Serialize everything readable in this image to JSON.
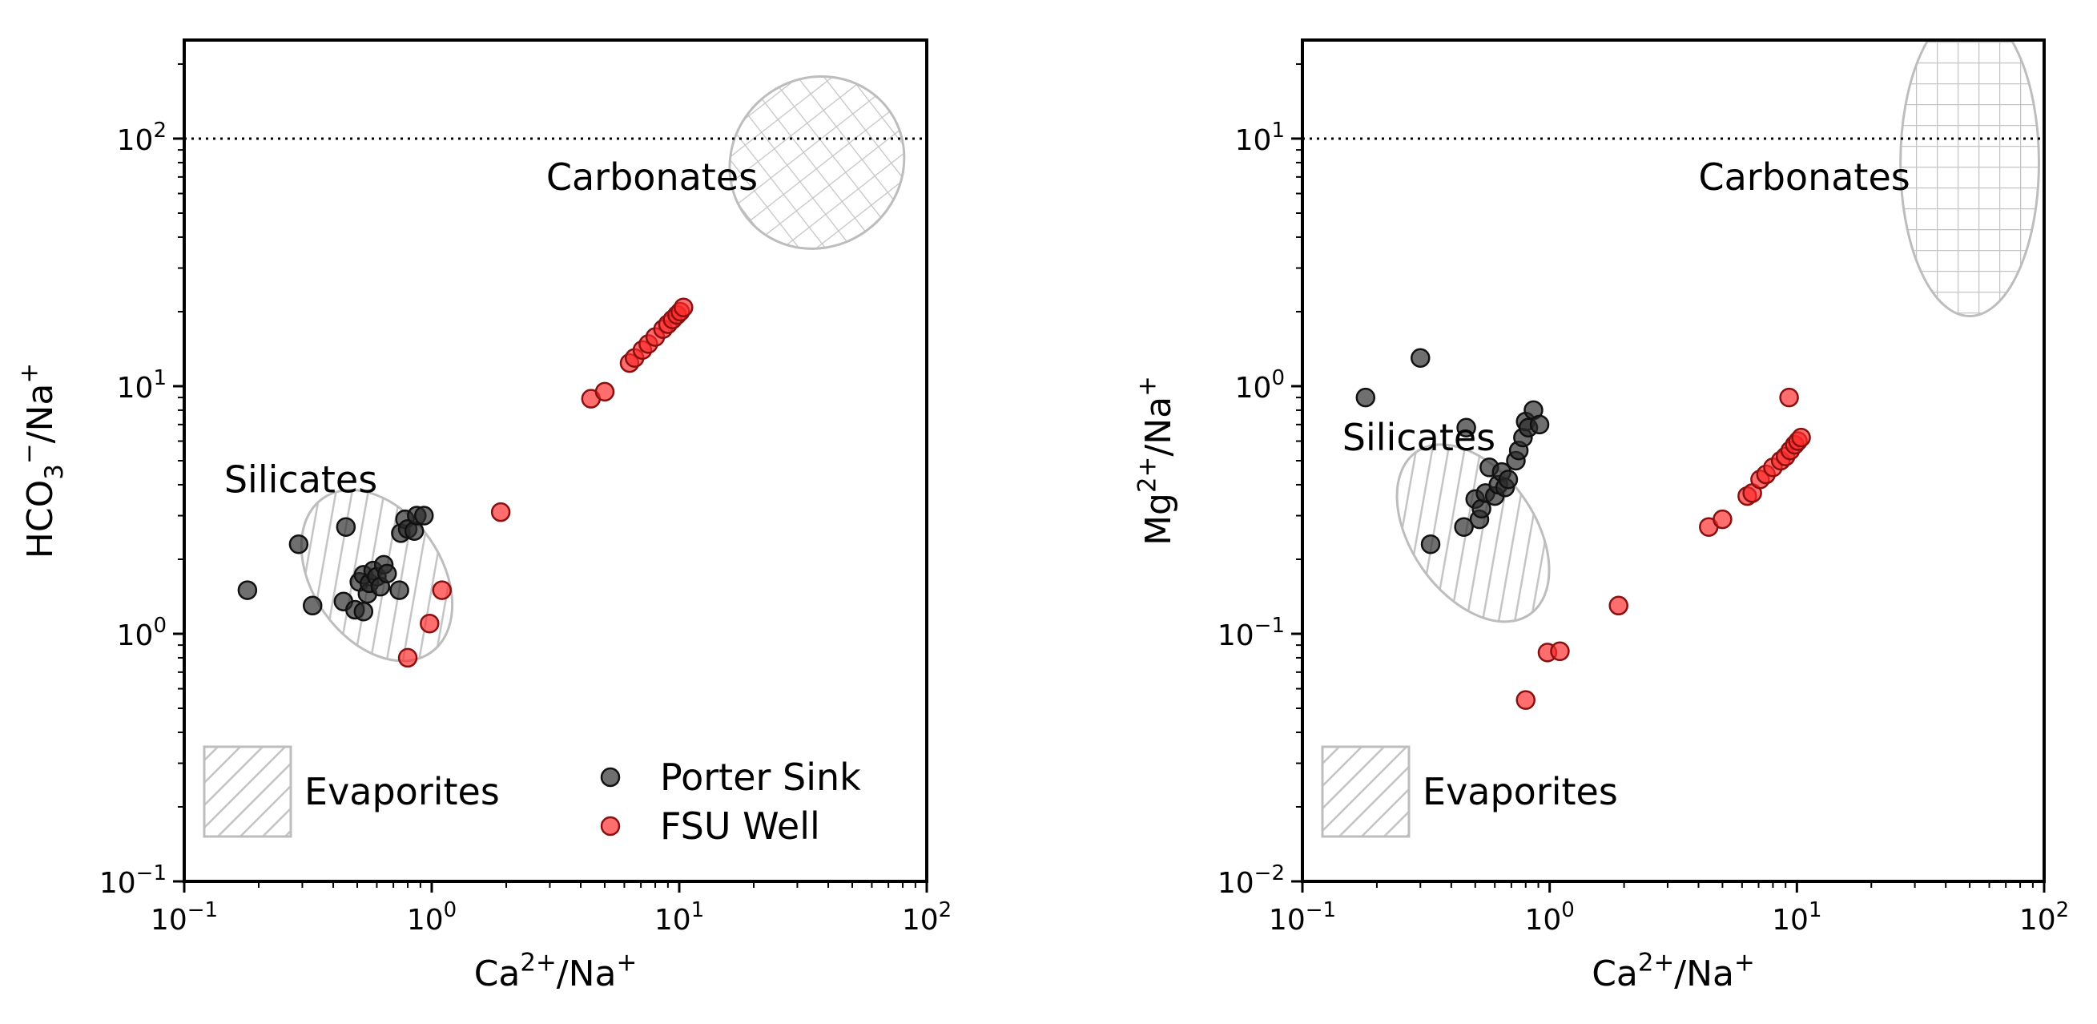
{
  "figure": {
    "legend": {
      "entries": [
        {
          "label": "Porter Sink",
          "color": "#2b2b2b"
        },
        {
          "label": "FSU Well",
          "color": "#ff2a2a"
        }
      ],
      "placement": "lower-right of left panel"
    }
  },
  "chart_data": [
    {
      "type": "scatter",
      "xscale": "log",
      "yscale": "log",
      "xlim": [
        0.1,
        100
      ],
      "ylim": [
        0.1,
        250
      ],
      "xticks": [
        {
          "v": 0.1,
          "base": "10",
          "exp": "−1"
        },
        {
          "v": 1,
          "base": "10",
          "exp": "0"
        },
        {
          "v": 10,
          "base": "10",
          "exp": "1"
        },
        {
          "v": 100,
          "base": "10",
          "exp": "2"
        }
      ],
      "yticks": [
        {
          "v": 0.1,
          "base": "10",
          "exp": "−1"
        },
        {
          "v": 1,
          "base": "10",
          "exp": "0"
        },
        {
          "v": 10,
          "base": "10",
          "exp": "1"
        },
        {
          "v": 100,
          "base": "10",
          "exp": "2"
        }
      ],
      "xlabel": {
        "parts": [
          [
            "Ca",
            ""
          ],
          [
            "2+",
            "sup"
          ],
          [
            "/Na",
            ""
          ],
          [
            "+",
            "sup"
          ]
        ]
      },
      "ylabel": {
        "parts": [
          [
            "HCO",
            ""
          ],
          [
            "3",
            "sub"
          ],
          [
            "−",
            "sup"
          ],
          [
            "/Na",
            ""
          ],
          [
            "+",
            "sup"
          ]
        ]
      },
      "hline": {
        "y": 100,
        "style": "dotted"
      },
      "regions": [
        {
          "name": "Carbonates",
          "hatch": "grid",
          "cx": 36,
          "cy": 80,
          "rx_dec": 0.36,
          "ry_dec": 0.34,
          "angle": 38
        },
        {
          "name": "Silicates",
          "hatch": "diagonal",
          "cx": 0.6,
          "cy": 1.72,
          "rx_dec": 0.26,
          "ry_dec": 0.38,
          "angle": 35
        }
      ],
      "region_labels": [
        {
          "text": "Carbonates",
          "x": 2.9,
          "y": 70
        },
        {
          "text": "Silicates",
          "x": 0.145,
          "y": 4.2
        }
      ],
      "evaporites": {
        "text": "Evaporites"
      },
      "series": [
        {
          "name": "Porter Sink",
          "color": "#2b2b2b",
          "points": [
            [
              0.18,
              1.5
            ],
            [
              0.29,
              2.3
            ],
            [
              0.33,
              1.3
            ],
            [
              0.44,
              1.35
            ],
            [
              0.45,
              2.7
            ],
            [
              0.49,
              1.25
            ],
            [
              0.51,
              1.62
            ],
            [
              0.53,
              1.23
            ],
            [
              0.53,
              1.73
            ],
            [
              0.55,
              1.45
            ],
            [
              0.56,
              1.6
            ],
            [
              0.58,
              1.8
            ],
            [
              0.6,
              1.7
            ],
            [
              0.62,
              1.55
            ],
            [
              0.64,
              1.9
            ],
            [
              0.66,
              1.75
            ],
            [
              0.74,
              1.5
            ],
            [
              0.75,
              2.55
            ],
            [
              0.78,
              2.9
            ],
            [
              0.8,
              2.65
            ],
            [
              0.85,
              2.6
            ],
            [
              0.87,
              3.0
            ],
            [
              0.93,
              3.0
            ]
          ]
        },
        {
          "name": "FSU Well",
          "color": "#ff2a2a",
          "points": [
            [
              0.8,
              0.8
            ],
            [
              0.98,
              1.1
            ],
            [
              1.1,
              1.5
            ],
            [
              1.9,
              3.1
            ],
            [
              4.4,
              8.9
            ],
            [
              5.0,
              9.5
            ],
            [
              6.3,
              12.4
            ],
            [
              6.6,
              13.0
            ],
            [
              7.1,
              14.0
            ],
            [
              7.5,
              14.8
            ],
            [
              8.0,
              15.8
            ],
            [
              8.6,
              17.0
            ],
            [
              9.0,
              17.8
            ],
            [
              9.4,
              18.6
            ],
            [
              9.8,
              19.4
            ],
            [
              10.1,
              20.0
            ],
            [
              10.4,
              20.8
            ]
          ]
        }
      ]
    },
    {
      "type": "scatter",
      "xscale": "log",
      "yscale": "log",
      "xlim": [
        0.1,
        100
      ],
      "ylim": [
        0.01,
        25
      ],
      "xticks": [
        {
          "v": 0.1,
          "base": "10",
          "exp": "−1"
        },
        {
          "v": 1,
          "base": "10",
          "exp": "0"
        },
        {
          "v": 10,
          "base": "10",
          "exp": "1"
        },
        {
          "v": 100,
          "base": "10",
          "exp": "2"
        }
      ],
      "yticks": [
        {
          "v": 0.01,
          "base": "10",
          "exp": "−2"
        },
        {
          "v": 0.1,
          "base": "10",
          "exp": "−1"
        },
        {
          "v": 1,
          "base": "10",
          "exp": "0"
        },
        {
          "v": 10,
          "base": "10",
          "exp": "1"
        }
      ],
      "xlabel": {
        "parts": [
          [
            "Ca",
            ""
          ],
          [
            "2+",
            "sup"
          ],
          [
            "/Na",
            ""
          ],
          [
            "+",
            "sup"
          ]
        ]
      },
      "ylabel": {
        "parts": [
          [
            "Mg",
            ""
          ],
          [
            "2+",
            "sup"
          ],
          [
            "/Na",
            ""
          ],
          [
            "+",
            "sup"
          ]
        ]
      },
      "hline": {
        "y": 10,
        "style": "dotted"
      },
      "regions": [
        {
          "name": "Carbonates",
          "hatch": "grid",
          "cx": 50,
          "cy": 8,
          "rx_dec": 0.28,
          "ry_dec": 0.62,
          "angle": 0
        },
        {
          "name": "Silicates",
          "hatch": "diagonal",
          "cx": 0.49,
          "cy": 0.255,
          "rx_dec": 0.25,
          "ry_dec": 0.4,
          "angle": 35
        }
      ],
      "region_labels": [
        {
          "text": "Carbonates",
          "x": 4.0,
          "y": 7.0
        },
        {
          "text": "Silicates",
          "x": 0.145,
          "y": 0.62
        }
      ],
      "evaporites": {
        "text": "Evaporites"
      },
      "series": [
        {
          "name": "Porter Sink",
          "color": "#2b2b2b",
          "points": [
            [
              0.18,
              0.9
            ],
            [
              0.3,
              1.3
            ],
            [
              0.33,
              0.23
            ],
            [
              0.45,
              0.27
            ],
            [
              0.46,
              0.68
            ],
            [
              0.5,
              0.35
            ],
            [
              0.52,
              0.29
            ],
            [
              0.53,
              0.32
            ],
            [
              0.55,
              0.37
            ],
            [
              0.57,
              0.47
            ],
            [
              0.6,
              0.36
            ],
            [
              0.62,
              0.4
            ],
            [
              0.64,
              0.45
            ],
            [
              0.66,
              0.39
            ],
            [
              0.68,
              0.42
            ],
            [
              0.73,
              0.5
            ],
            [
              0.75,
              0.55
            ],
            [
              0.78,
              0.62
            ],
            [
              0.8,
              0.72
            ],
            [
              0.82,
              0.68
            ],
            [
              0.86,
              0.8
            ],
            [
              0.91,
              0.7
            ]
          ]
        },
        {
          "name": "FSU Well",
          "color": "#ff2a2a",
          "points": [
            [
              0.8,
              0.054
            ],
            [
              0.98,
              0.084
            ],
            [
              1.1,
              0.085
            ],
            [
              1.9,
              0.13
            ],
            [
              4.4,
              0.27
            ],
            [
              5.0,
              0.29
            ],
            [
              6.3,
              0.36
            ],
            [
              6.6,
              0.37
            ],
            [
              7.1,
              0.42
            ],
            [
              7.5,
              0.44
            ],
            [
              8.0,
              0.47
            ],
            [
              8.6,
              0.5
            ],
            [
              9.0,
              0.52
            ],
            [
              9.3,
              0.9
            ],
            [
              9.4,
              0.55
            ],
            [
              9.8,
              0.58
            ],
            [
              10.1,
              0.6
            ],
            [
              10.4,
              0.62
            ]
          ]
        }
      ]
    }
  ]
}
